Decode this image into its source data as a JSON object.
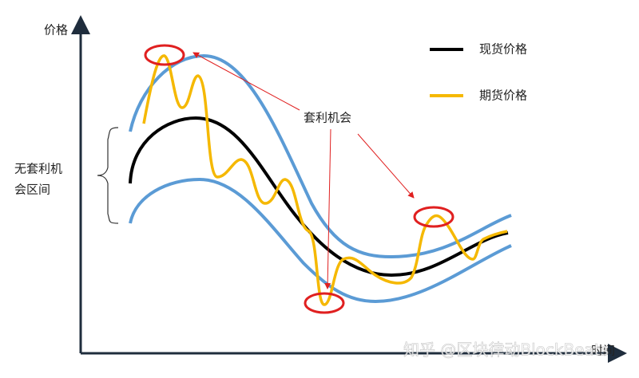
{
  "axes": {
    "y_label": "价格",
    "x_label": "时间"
  },
  "legend": {
    "items": [
      {
        "label": "现货价格",
        "color": "#000000"
      },
      {
        "label": "期货价格",
        "color": "#f5b800"
      }
    ]
  },
  "annotation": "套利机会",
  "band_label": {
    "lines": [
      "无套利机",
      "会区间"
    ]
  },
  "watermark": "知乎 @区块律动BlockBeats"
}
